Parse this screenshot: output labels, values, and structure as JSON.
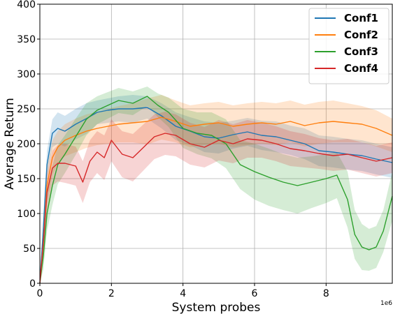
{
  "chart_data": {
    "type": "line",
    "title": "",
    "xlabel": "System probes",
    "ylabel": "Average Return",
    "x_scale_label": "1e6",
    "xlim": [
      0,
      9.85
    ],
    "ylim": [
      0,
      400
    ],
    "xticks": [
      0,
      2,
      4,
      6,
      8
    ],
    "xtick_labels": [
      "0",
      "2",
      "4",
      "6",
      "8"
    ],
    "yticks": [
      0,
      50,
      100,
      150,
      200,
      250,
      300,
      350,
      400
    ],
    "ytick_labels": [
      "0",
      "50",
      "100",
      "150",
      "200",
      "250",
      "300",
      "350",
      "400"
    ],
    "grid": true,
    "legend_position": "top-right",
    "series": [
      {
        "name": "Conf1",
        "color": "#1f77b4",
        "x": [
          0,
          0.1,
          0.2,
          0.35,
          0.5,
          0.7,
          1.0,
          1.3,
          1.6,
          1.9,
          2.2,
          2.6,
          3.0,
          3.4,
          3.8,
          4.2,
          4.6,
          5.0,
          5.4,
          5.8,
          6.2,
          6.6,
          7.0,
          7.4,
          7.8,
          8.2,
          8.6,
          9.0,
          9.4,
          9.85
        ],
        "y": [
          0,
          80,
          170,
          215,
          222,
          218,
          228,
          236,
          245,
          248,
          250,
          250,
          252,
          240,
          225,
          218,
          210,
          208,
          213,
          217,
          212,
          210,
          205,
          200,
          190,
          188,
          185,
          183,
          178,
          173
        ],
        "upper": [
          0,
          100,
          190,
          235,
          245,
          240,
          250,
          258,
          262,
          265,
          268,
          270,
          268,
          258,
          245,
          238,
          232,
          230,
          233,
          237,
          233,
          232,
          226,
          222,
          212,
          210,
          207,
          205,
          200,
          195
        ],
        "lower": [
          0,
          60,
          150,
          195,
          200,
          196,
          206,
          214,
          228,
          230,
          232,
          230,
          236,
          222,
          205,
          198,
          188,
          186,
          193,
          197,
          191,
          188,
          184,
          178,
          168,
          166,
          163,
          161,
          156,
          151
        ]
      },
      {
        "name": "Conf2",
        "color": "#ff7f0e",
        "x": [
          0,
          0.1,
          0.2,
          0.35,
          0.5,
          0.7,
          1.0,
          1.3,
          1.6,
          1.9,
          2.2,
          2.6,
          3.0,
          3.4,
          3.8,
          4.2,
          4.6,
          5.0,
          5.4,
          5.8,
          6.2,
          6.6,
          7.0,
          7.4,
          7.8,
          8.2,
          8.6,
          9.0,
          9.4,
          9.85
        ],
        "y": [
          0,
          60,
          140,
          180,
          195,
          205,
          212,
          218,
          222,
          225,
          228,
          230,
          232,
          238,
          232,
          225,
          228,
          230,
          225,
          228,
          230,
          228,
          232,
          226,
          230,
          232,
          230,
          228,
          222,
          212
        ],
        "upper": [
          0,
          80,
          165,
          205,
          218,
          228,
          236,
          242,
          246,
          250,
          254,
          258,
          265,
          270,
          262,
          255,
          258,
          260,
          255,
          258,
          260,
          258,
          262,
          256,
          260,
          262,
          258,
          254,
          248,
          236
        ],
        "lower": [
          0,
          40,
          115,
          155,
          172,
          182,
          188,
          194,
          198,
          200,
          202,
          202,
          199,
          206,
          202,
          195,
          198,
          200,
          195,
          198,
          200,
          198,
          202,
          196,
          200,
          202,
          202,
          202,
          196,
          188
        ]
      },
      {
        "name": "Conf3",
        "color": "#2ca02c",
        "x": [
          0,
          0.1,
          0.2,
          0.35,
          0.5,
          0.7,
          1.0,
          1.3,
          1.6,
          1.9,
          2.2,
          2.6,
          3.0,
          3.3,
          3.6,
          4.0,
          4.4,
          4.8,
          5.2,
          5.6,
          6.0,
          6.4,
          6.8,
          7.2,
          7.6,
          8.0,
          8.3,
          8.6,
          8.8,
          9.0,
          9.2,
          9.4,
          9.6,
          9.85
        ],
        "y": [
          0,
          40,
          100,
          140,
          170,
          185,
          210,
          235,
          248,
          255,
          262,
          258,
          268,
          255,
          245,
          222,
          215,
          212,
          200,
          170,
          160,
          152,
          145,
          140,
          145,
          150,
          155,
          120,
          70,
          52,
          48,
          52,
          75,
          125
        ],
        "upper": [
          0,
          60,
          125,
          168,
          198,
          212,
          236,
          258,
          268,
          274,
          280,
          275,
          282,
          272,
          266,
          250,
          245,
          245,
          235,
          205,
          200,
          193,
          185,
          180,
          182,
          185,
          188,
          160,
          105,
          85,
          78,
          82,
          105,
          160
        ],
        "lower": [
          0,
          20,
          75,
          112,
          142,
          158,
          184,
          212,
          228,
          236,
          244,
          241,
          254,
          238,
          224,
          194,
          185,
          179,
          165,
          135,
          120,
          111,
          105,
          100,
          108,
          115,
          122,
          80,
          35,
          19,
          18,
          22,
          45,
          90
        ]
      },
      {
        "name": "Conf4",
        "color": "#d62728",
        "x": [
          0,
          0.1,
          0.2,
          0.35,
          0.5,
          0.7,
          1.0,
          1.2,
          1.4,
          1.6,
          1.8,
          2.0,
          2.3,
          2.6,
          2.9,
          3.2,
          3.5,
          3.8,
          4.2,
          4.6,
          5.0,
          5.4,
          5.8,
          6.2,
          6.6,
          7.0,
          7.4,
          7.8,
          8.2,
          8.6,
          9.0,
          9.4,
          9.85
        ],
        "y": [
          0,
          60,
          130,
          165,
          172,
          172,
          168,
          145,
          175,
          188,
          180,
          205,
          185,
          180,
          195,
          210,
          215,
          212,
          200,
          195,
          205,
          200,
          207,
          205,
          200,
          193,
          190,
          186,
          183,
          185,
          180,
          175,
          180
        ],
        "upper": [
          0,
          80,
          155,
          190,
          198,
          200,
          196,
          175,
          205,
          218,
          212,
          235,
          218,
          214,
          228,
          242,
          246,
          242,
          230,
          224,
          234,
          228,
          234,
          230,
          225,
          218,
          214,
          208,
          205,
          207,
          202,
          197,
          202
        ],
        "lower": [
          0,
          40,
          105,
          140,
          146,
          144,
          140,
          115,
          145,
          158,
          148,
          175,
          152,
          146,
          162,
          178,
          184,
          182,
          170,
          166,
          176,
          172,
          180,
          180,
          175,
          168,
          166,
          164,
          161,
          163,
          158,
          153,
          158
        ]
      }
    ]
  }
}
